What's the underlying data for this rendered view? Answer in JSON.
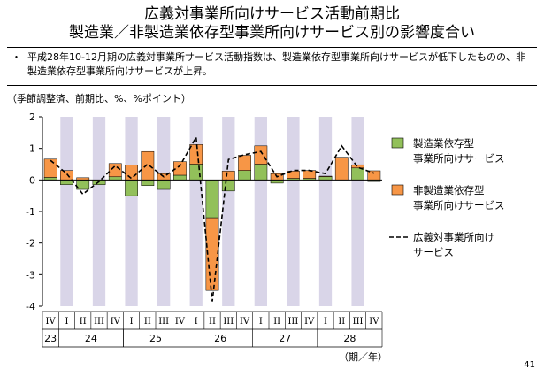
{
  "title_line1": "広義対事業所向けサービス活動前期比",
  "title_line2": "製造業／非製造業依存型事業所向けサービス別の影響度合い",
  "bullet": "平成28年10-12月期の広義対事業所サービス活動指数は、製造業依存型事業所向けサービスが低下したものの、非製造業依存型事業所向けサービスが上昇。",
  "bullet_mark": "・",
  "units_note": "（季節調整済、前期比、%、%ポイント）",
  "page_number": "41",
  "colors": {
    "manufacturing": "#92c05a",
    "nonmanufacturing": "#f79646",
    "band": "#d9d5e8",
    "line": "#000000"
  },
  "chart_data": {
    "type": "bar",
    "stacked": true,
    "ylim": [
      -4,
      2
    ],
    "yticks": [
      "2",
      "1",
      "0",
      "-1",
      "-2",
      "-3",
      "-4"
    ],
    "categories": [
      "IV",
      "I",
      "II",
      "III",
      "IV",
      "I",
      "II",
      "III",
      "IV",
      "I",
      "II",
      "III",
      "IV",
      "I",
      "II",
      "III",
      "IV",
      "I",
      "II",
      "III",
      "IV"
    ],
    "years": [
      {
        "label": "23",
        "start": 0,
        "end": 0
      },
      {
        "label": "24",
        "start": 1,
        "end": 4
      },
      {
        "label": "25",
        "start": 5,
        "end": 8
      },
      {
        "label": "26",
        "start": 9,
        "end": 12
      },
      {
        "label": "27",
        "start": 13,
        "end": 16
      },
      {
        "label": "28",
        "start": 17,
        "end": 20
      }
    ],
    "period_label": "（期／年）",
    "series": [
      {
        "name": "製造業依存型\n事業所向けサービス",
        "type": "bar",
        "values": [
          0.08,
          -0.15,
          -0.3,
          -0.15,
          0.1,
          -0.5,
          -0.18,
          -0.3,
          0.15,
          0.5,
          -1.2,
          -0.35,
          0.3,
          0.5,
          -0.1,
          0.05,
          0.05,
          0.1,
          0.0,
          0.38,
          -0.05
        ]
      },
      {
        "name": "非製造業依存型\n事業所向けサービス",
        "type": "bar",
        "values": [
          0.58,
          0.3,
          0.07,
          0.0,
          0.42,
          0.47,
          0.9,
          0.2,
          0.43,
          0.62,
          -2.3,
          0.28,
          0.48,
          0.58,
          0.2,
          0.23,
          0.25,
          0.02,
          0.72,
          0.1,
          0.29
        ]
      },
      {
        "name": "広義対事業所向け\nサービス",
        "type": "line",
        "values": [
          0.62,
          0.2,
          -0.45,
          -0.05,
          0.45,
          0.05,
          0.5,
          0.1,
          0.45,
          1.35,
          -3.85,
          0.65,
          0.8,
          0.9,
          0.1,
          0.3,
          0.3,
          0.2,
          1.08,
          0.4,
          0.21
        ]
      }
    ]
  }
}
